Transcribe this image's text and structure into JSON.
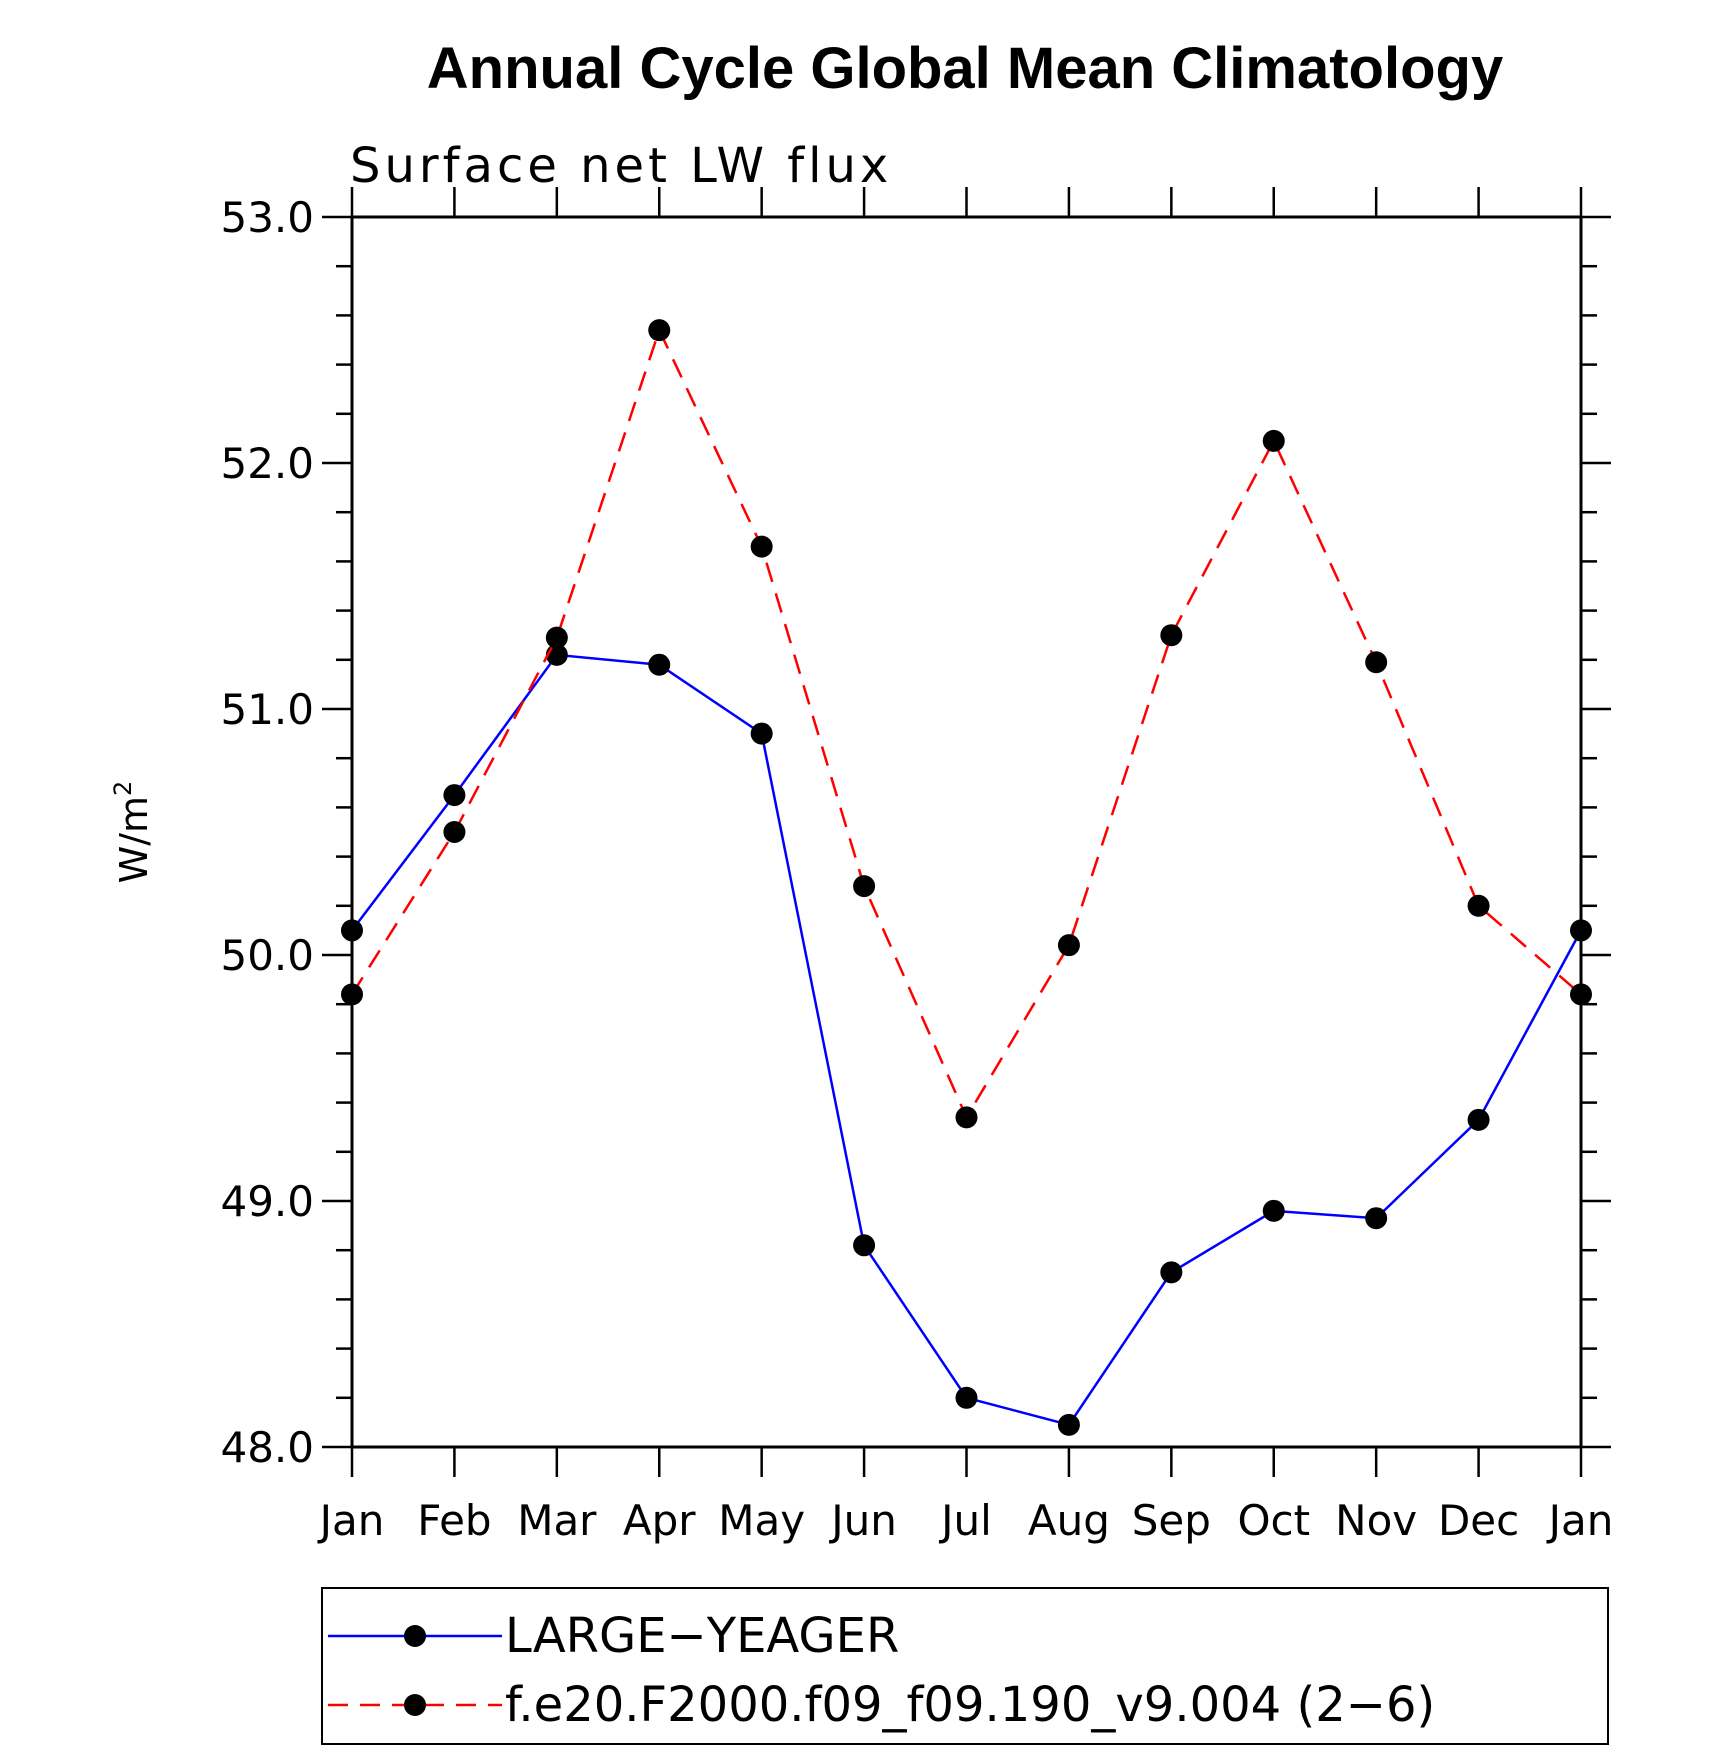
{
  "chart_data": {
    "type": "line",
    "title": "Annual Cycle Global Mean Climatology",
    "subtitle": "Surface net LW flux",
    "ylabel_base": "W/m",
    "ylabel_sup": "2",
    "ylim": [
      48.0,
      53.0
    ],
    "yticks": [
      "48.0",
      "49.0",
      "50.0",
      "51.0",
      "52.0",
      "53.0"
    ],
    "categories": [
      "Jan",
      "Feb",
      "Mar",
      "Apr",
      "May",
      "Jun",
      "Jul",
      "Aug",
      "Sep",
      "Oct",
      "Nov",
      "Dec",
      "Jan"
    ],
    "series": [
      {
        "name": "LARGE−YEAGER",
        "color": "#0000ff",
        "dash": "solid",
        "values": [
          50.1,
          50.65,
          51.22,
          51.18,
          50.9,
          48.82,
          48.2,
          48.09,
          48.71,
          48.96,
          48.93,
          49.33,
          50.1
        ]
      },
      {
        "name": "f.e20.F2000.f09_f09.190_v9.004 (2−6)",
        "color": "#ff0000",
        "dash": "dashed",
        "values": [
          49.84,
          50.5,
          51.29,
          52.54,
          51.66,
          50.28,
          49.34,
          50.04,
          51.3,
          52.09,
          51.19,
          50.2,
          49.84
        ]
      }
    ],
    "legend_position": "bottom"
  }
}
